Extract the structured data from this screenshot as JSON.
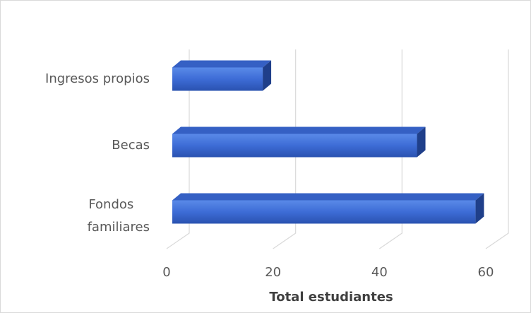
{
  "chart_data": {
    "type": "bar3d_horizontal",
    "categories": [
      "Fondos familiares",
      "Becas",
      "Ingresos propios"
    ],
    "values": [
      57,
      46,
      17
    ],
    "color": "#3a6ad4",
    "xlabel": "Total estudiantes",
    "xlim": [
      0,
      60
    ],
    "xticks": [
      0,
      20,
      40,
      60
    ],
    "grid": true
  }
}
